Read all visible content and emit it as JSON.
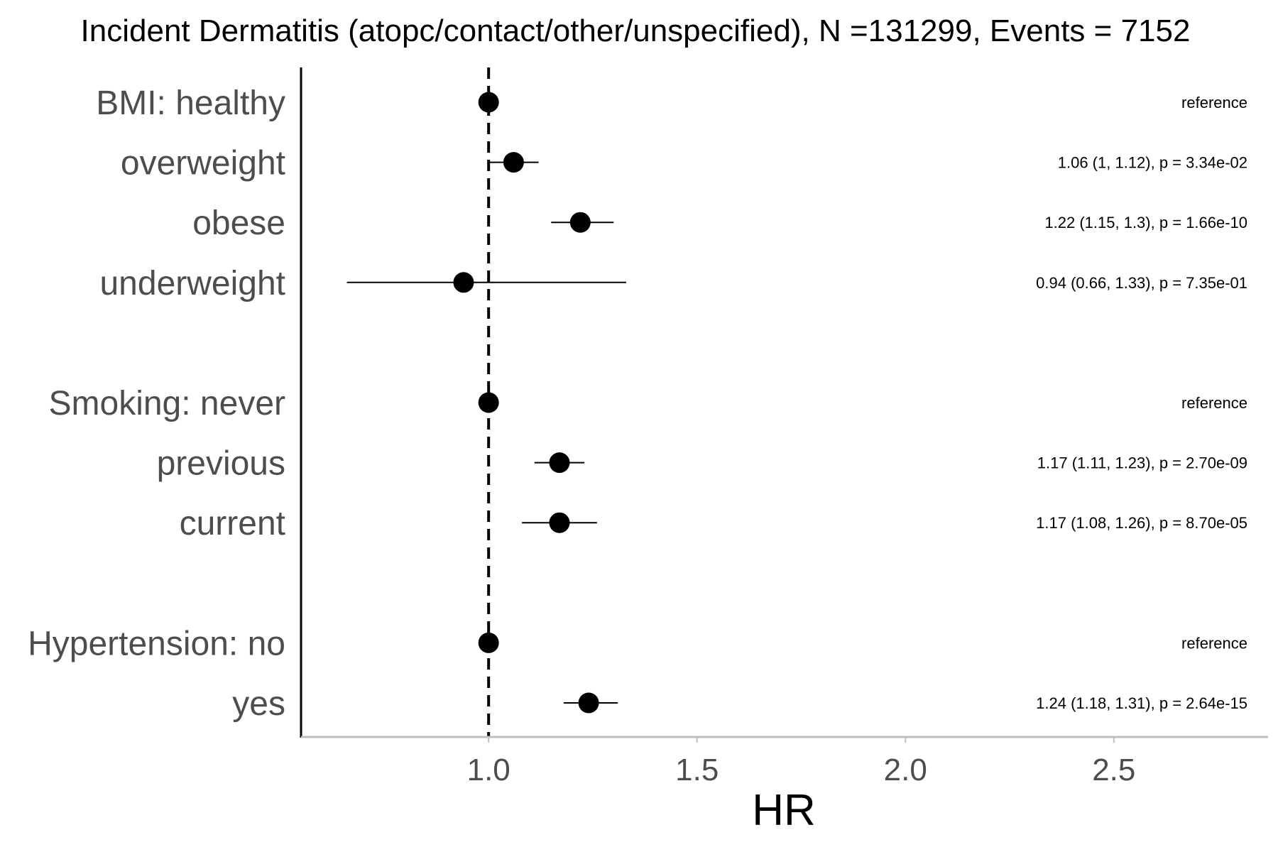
{
  "chart_data": {
    "type": "scatter",
    "subtype": "forest-plot",
    "title": "Incident Dermatitis (atopc/contact/other/unspecified), N =131299, Events = 7152",
    "xlabel": "HR",
    "ylabel": "",
    "xlim": [
      0.55,
      2.87
    ],
    "x_ticks": [
      1.0,
      1.5,
      2.0,
      2.5
    ],
    "x_tick_labels": [
      "1.0",
      "1.5",
      "2.0",
      "2.5"
    ],
    "reference_line": 1.0,
    "grid": false,
    "legend": "none",
    "rows": [
      {
        "label": "BMI: healthy",
        "hr": 1.0,
        "lower": null,
        "upper": null,
        "annotation": "reference"
      },
      {
        "label": "overweight",
        "hr": 1.06,
        "lower": 1.0,
        "upper": 1.12,
        "annotation": "1.06 (1, 1.12), p = 3.34e-02"
      },
      {
        "label": "obese",
        "hr": 1.22,
        "lower": 1.15,
        "upper": 1.3,
        "annotation": "1.22 (1.15, 1.3), p = 1.66e-10"
      },
      {
        "label": "underweight",
        "hr": 0.94,
        "lower": 0.66,
        "upper": 1.33,
        "annotation": "0.94 (0.66, 1.33), p = 7.35e-01"
      },
      {
        "label": "",
        "spacer": true
      },
      {
        "label": "Smoking: never",
        "hr": 1.0,
        "lower": null,
        "upper": null,
        "annotation": "reference"
      },
      {
        "label": "previous",
        "hr": 1.17,
        "lower": 1.11,
        "upper": 1.23,
        "annotation": "1.17 (1.11, 1.23), p = 2.70e-09"
      },
      {
        "label": "current",
        "hr": 1.17,
        "lower": 1.08,
        "upper": 1.26,
        "annotation": "1.17 (1.08, 1.26), p = 8.70e-05"
      },
      {
        "label": "",
        "spacer": true
      },
      {
        "label": "Hypertension: no",
        "hr": 1.0,
        "lower": null,
        "upper": null,
        "annotation": "reference"
      },
      {
        "label": "yes",
        "hr": 1.24,
        "lower": 1.18,
        "upper": 1.31,
        "annotation": "1.24 (1.18, 1.31), p = 2.64e-15"
      }
    ]
  },
  "colors": {
    "point": "#000000",
    "row_label": "#4d4d4d",
    "x_axis_line": "#bfbfbf",
    "y_axis_line": "#000000"
  }
}
